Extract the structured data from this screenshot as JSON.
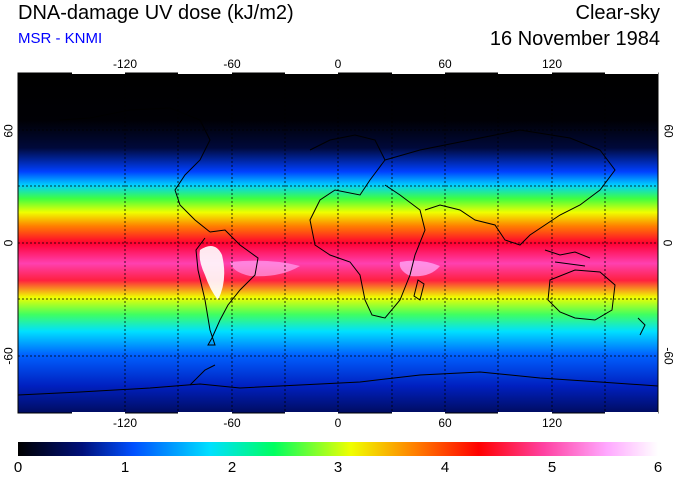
{
  "header": {
    "title": "DNA-damage UV dose (kJ/m2)",
    "subtitle": "MSR - KNMI",
    "sky": "Clear-sky",
    "date": "16 November 1984"
  },
  "axes": {
    "lon_ticks": [
      "-120",
      "-60",
      "0",
      "60",
      "120"
    ],
    "lat_ticks": [
      "60",
      "0",
      "-60"
    ]
  },
  "colorbar": {
    "labels": [
      "0",
      "1",
      "2",
      "3",
      "4",
      "5",
      "6"
    ],
    "min": 0,
    "max": 6
  },
  "colors": {
    "scale": [
      "#000000",
      "#00107a",
      "#0050ff",
      "#00e0ff",
      "#00ff60",
      "#f0ff00",
      "#ff8000",
      "#ff0000",
      "#ff40a0",
      "#ffa8ff",
      "#ffffff"
    ]
  }
}
